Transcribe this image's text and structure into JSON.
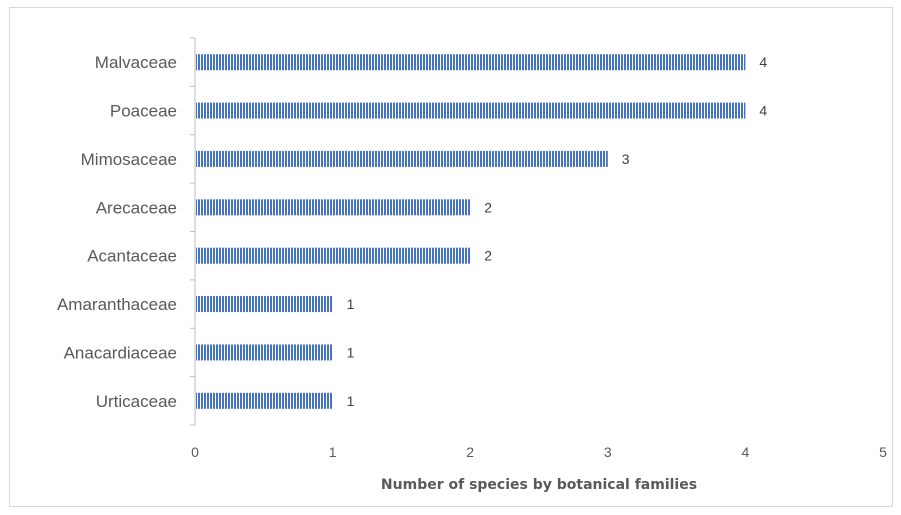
{
  "chart_data": {
    "type": "bar",
    "orientation": "horizontal",
    "categories": [
      "Malvaceae",
      "Poaceae",
      "Mimosaceae",
      "Arecaceae",
      "Acantaceae",
      "Amaranthaceae",
      "Anacardiaceae",
      "Urticaceae"
    ],
    "values": [
      4,
      4,
      3,
      2,
      2,
      1,
      1,
      1
    ],
    "xlabel": "Number of species by botanical families",
    "ylabel": "",
    "xlim": [
      0,
      5
    ],
    "xticks": [
      "0",
      "1",
      "2",
      "3",
      "4",
      "5"
    ],
    "grid": false,
    "legend": "none",
    "bar_color": "#4472c4",
    "data_labels": true
  }
}
